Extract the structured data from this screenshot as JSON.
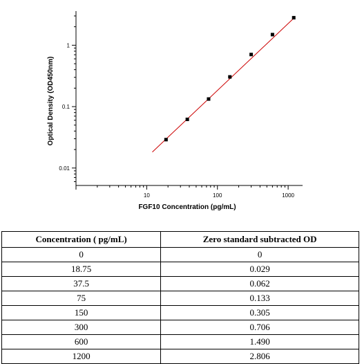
{
  "chart_data": {
    "type": "scatter",
    "title": "",
    "xlabel": "FGF10 Concentration (pg/mL)",
    "ylabel": "Optical Density (OD450nm)",
    "xscale": "log",
    "yscale": "log",
    "xlim": [
      1,
      1600
    ],
    "ylim": [
      0.0052,
      3.6
    ],
    "xticks": [
      10,
      100,
      1000
    ],
    "xtick_labels": [
      "10",
      "100",
      "1000"
    ],
    "yticks": [
      0.01,
      0.1,
      1
    ],
    "ytick_labels": [
      "0.01",
      "0.1",
      "1"
    ],
    "grid": false,
    "series": [
      {
        "x": [
          18.75,
          37.5,
          75,
          150,
          300,
          600,
          1200
        ],
        "y": [
          0.029,
          0.062,
          0.133,
          0.305,
          0.706,
          1.49,
          2.806
        ],
        "marker": "square",
        "color": "#000000"
      }
    ],
    "fit_line": {
      "color": "#cc0000",
      "x": [
        12,
        1200
      ],
      "y": [
        0.0182,
        2.75
      ]
    }
  },
  "table": {
    "headers": [
      "Concentration ( pg/mL)",
      "Zero standard subtracted OD"
    ],
    "rows": [
      [
        "0",
        "0"
      ],
      [
        "18.75",
        "0.029"
      ],
      [
        "37.5",
        "0.062"
      ],
      [
        "75",
        "0.133"
      ],
      [
        "150",
        "0.305"
      ],
      [
        "300",
        "0.706"
      ],
      [
        "600",
        "1.490"
      ],
      [
        "1200",
        "2.806"
      ]
    ]
  }
}
